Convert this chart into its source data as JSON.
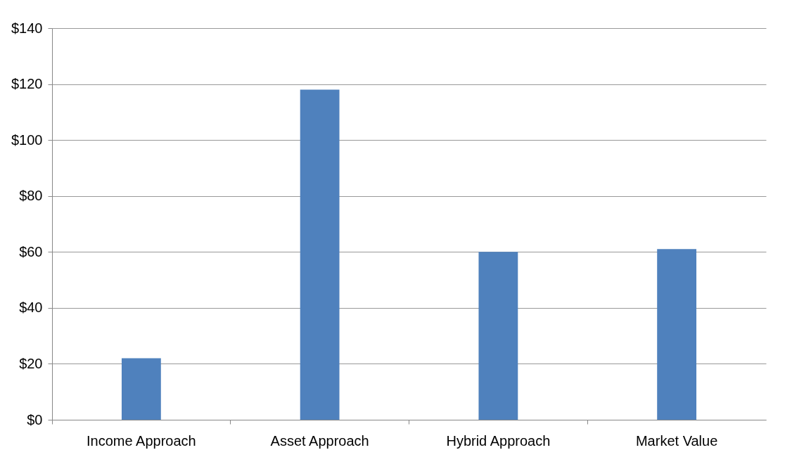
{
  "chart_data": {
    "type": "bar",
    "categories": [
      "Income Approach",
      "Asset Approach",
      "Hybrid Approach",
      "Market Value"
    ],
    "values": [
      22,
      118,
      60,
      61
    ],
    "color": "#4f81bd",
    "ylim": [
      0,
      140
    ],
    "yticks": [
      {
        "value": 0,
        "label": "$0"
      },
      {
        "value": 20,
        "label": "$20"
      },
      {
        "value": 40,
        "label": "$40"
      },
      {
        "value": 60,
        "label": "$60"
      },
      {
        "value": 80,
        "label": "$80"
      },
      {
        "value": 100,
        "label": "$100"
      },
      {
        "value": 120,
        "label": "$120"
      },
      {
        "value": 140,
        "label": "$140"
      }
    ],
    "grid": "y"
  }
}
